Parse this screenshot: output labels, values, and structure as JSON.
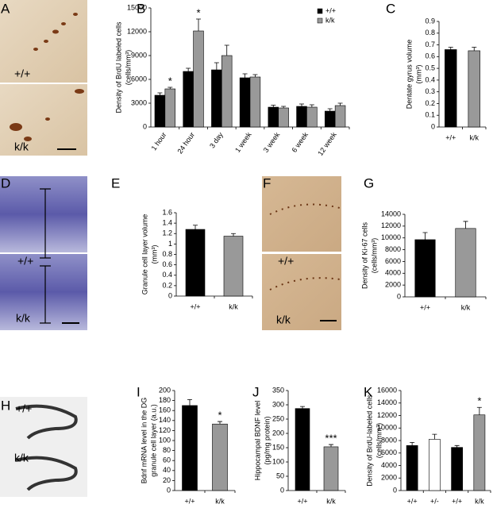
{
  "image_panels": [
    {
      "letter": "A",
      "labels": [
        "+/+",
        "k/k"
      ]
    },
    {
      "letter": "D",
      "labels": [
        "+/+",
        "k/k"
      ]
    },
    {
      "letter": "F",
      "labels": [
        "+/+",
        "k/k"
      ]
    },
    {
      "letter": "H",
      "labels": [
        "+/+",
        "k/k"
      ]
    }
  ],
  "chart_data": [
    {
      "type": "bar",
      "panel": "B",
      "ylabel": [
        "Density of BrdU labeled cells",
        "(cells/mm³)"
      ],
      "categories": [
        "1 hour",
        "24 hour",
        "3 day",
        "1 week",
        "3 week",
        "6 week",
        "12 week"
      ],
      "series": [
        {
          "name": "+/+",
          "color": "#000000",
          "values": [
            4000,
            7000,
            7200,
            6200,
            2500,
            2600,
            2000
          ],
          "errors": [
            300,
            400,
            900,
            500,
            250,
            300,
            300
          ],
          "labels": [
            null,
            null,
            null,
            null,
            null,
            null,
            null
          ]
        },
        {
          "name": "k/k",
          "color": "#999999",
          "values": [
            4800,
            12100,
            9000,
            6300,
            2400,
            2500,
            2700
          ],
          "errors": [
            200,
            1500,
            1300,
            300,
            200,
            300,
            300
          ],
          "labels": [
            "*",
            "*",
            null,
            null,
            null,
            null,
            null
          ]
        }
      ],
      "ylim": [
        0,
        15000
      ],
      "yticks": [
        0,
        3000,
        6000,
        9000,
        12000,
        15000
      ],
      "legend": "upper right"
    },
    {
      "type": "bar",
      "panel": "C",
      "ylabel": [
        "Dentate gyrus volume",
        "(mm³)"
      ],
      "categories": [
        "+/+",
        "k/k"
      ],
      "values": [
        0.66,
        0.65
      ],
      "errors": [
        0.02,
        0.03
      ],
      "labels": [
        null,
        null
      ],
      "colors": [
        "#000000",
        "#999999"
      ],
      "ylim": [
        0,
        0.9
      ],
      "yticks": [
        0,
        0.1,
        0.2,
        0.3,
        0.4,
        0.5,
        0.6,
        0.7,
        0.8,
        0.9
      ]
    },
    {
      "type": "bar",
      "panel": "E",
      "ylabel": [
        "Granule cell layer volume",
        "(mm³)"
      ],
      "categories": [
        "+/+",
        "k/k"
      ],
      "values": [
        1.28,
        1.15
      ],
      "errors": [
        0.08,
        0.05
      ],
      "labels": [
        null,
        null
      ],
      "colors": [
        "#000000",
        "#999999"
      ],
      "ylim": [
        0,
        1.6
      ],
      "yticks": [
        0,
        0.2,
        0.4,
        0.6,
        0.8,
        1,
        1.2,
        1.4,
        1.6
      ]
    },
    {
      "type": "bar",
      "panel": "G",
      "ylabel": [
        "Density of Ki-67 cells",
        "(cells/mm³)"
      ],
      "categories": [
        "+/+",
        "k/k"
      ],
      "values": [
        9700,
        11600
      ],
      "errors": [
        1200,
        1200
      ],
      "labels": [
        null,
        null
      ],
      "colors": [
        "#000000",
        "#999999"
      ],
      "ylim": [
        0,
        14000
      ],
      "yticks": [
        0,
        2000,
        4000,
        6000,
        8000,
        10000,
        12000,
        14000
      ]
    },
    {
      "type": "bar",
      "panel": "I",
      "ylabel": [
        "Bdnf mRNA level in the DG",
        "granule cell layer (a.u.)"
      ],
      "categories": [
        "+/+",
        "k/k"
      ],
      "values": [
        170,
        133
      ],
      "errors": [
        12,
        5
      ],
      "labels": [
        null,
        "*"
      ],
      "colors": [
        "#000000",
        "#999999"
      ],
      "ylim": [
        0,
        200
      ],
      "yticks": [
        0,
        20,
        40,
        60,
        80,
        100,
        120,
        140,
        160,
        180,
        200
      ]
    },
    {
      "type": "bar",
      "panel": "J",
      "ylabel": [
        "Hippocampal BDNF level",
        "(pg/mg protein)"
      ],
      "categories": [
        "+/+",
        "k/k"
      ],
      "values": [
        287,
        153
      ],
      "errors": [
        7,
        8
      ],
      "labels": [
        null,
        "***"
      ],
      "colors": [
        "#000000",
        "#999999"
      ],
      "ylim": [
        0,
        350
      ],
      "yticks": [
        0,
        50,
        100,
        150,
        200,
        250,
        300,
        350
      ]
    },
    {
      "type": "bar",
      "panel": "K",
      "ylabel": [
        "Density of BrdU-labeled cells",
        "(cells/mm³)"
      ],
      "categories": [
        "+/+",
        "+/-",
        "+/+",
        "k/k"
      ],
      "values": [
        7200,
        8200,
        6900,
        12100
      ],
      "errors": [
        500,
        800,
        300,
        1200
      ],
      "labels": [
        null,
        null,
        null,
        "*"
      ],
      "colors": [
        "#000000",
        "#ffffff",
        "#000000",
        "#999999"
      ],
      "ylim": [
        0,
        16000
      ],
      "yticks": [
        0,
        2000,
        4000,
        6000,
        8000,
        10000,
        12000,
        14000,
        16000
      ]
    }
  ]
}
